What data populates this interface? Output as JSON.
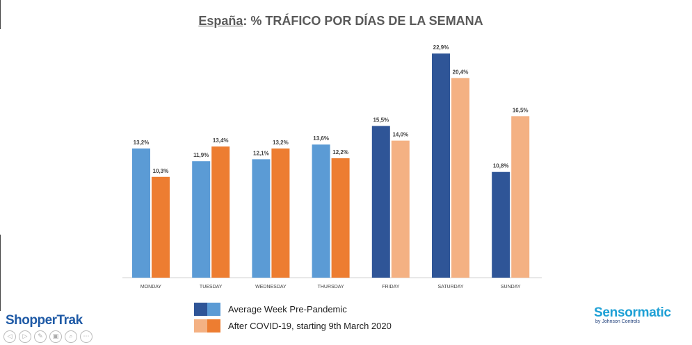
{
  "header": {
    "title_country": "España",
    "title_rest": ": % TRÁFICO POR DÍAS DE LA SEMANA"
  },
  "chart_data": {
    "type": "bar",
    "title": "España: % TRÁFICO POR DÍAS DE LA SEMANA",
    "xlabel": "",
    "ylabel": "",
    "ylim": [
      0,
      24
    ],
    "grid": false,
    "legend_position": "bottom",
    "categories": [
      "MONDAY",
      "TUESDAY",
      "WEDNESDAY",
      "THURSDAY",
      "FRIDAY",
      "SATURDAY",
      "SUNDAY"
    ],
    "series": [
      {
        "name": "Average Week Pre-Pandemic",
        "values": [
          13.2,
          11.9,
          12.1,
          13.6,
          15.5,
          22.9,
          10.8
        ],
        "labels": [
          "13,2%",
          "11,9%",
          "12,1%",
          "13,6%",
          "15,5%",
          "22,9%",
          "10,8%"
        ],
        "colors": [
          "#5b9bd5",
          "#5b9bd5",
          "#5b9bd5",
          "#5b9bd5",
          "#2f5597",
          "#2f5597",
          "#2f5597"
        ]
      },
      {
        "name": "After COVID-19, starting 9th March 2020",
        "values": [
          10.3,
          13.4,
          13.2,
          12.2,
          14.0,
          20.4,
          16.5
        ],
        "labels": [
          "10,3%",
          "13,4%",
          "13,2%",
          "12,2%",
          "14,0%",
          "20,4%",
          "16,5%"
        ],
        "colors": [
          "#ed7d31",
          "#ed7d31",
          "#ed7d31",
          "#ed7d31",
          "#f4b183",
          "#f4b183",
          "#f4b183"
        ]
      }
    ]
  },
  "legend": {
    "items": [
      {
        "label": "Average Week Pre-Pandemic",
        "colors": [
          "#2f5597",
          "#5b9bd5"
        ]
      },
      {
        "label": "After COVID-19, starting 9th March 2020",
        "colors": [
          "#f4b183",
          "#ed7d31"
        ]
      }
    ]
  },
  "branding": {
    "left_logo": "ShopperTrak",
    "right_logo": "Sensormatic",
    "right_logo_sub": "by Johnson Controls"
  },
  "controls": {
    "icons": [
      "prev-icon",
      "next-icon",
      "pen-icon",
      "slides-icon",
      "zoom-icon",
      "more-icon"
    ],
    "glyphs": [
      "◁",
      "▷",
      "✎",
      "▣",
      "⌕",
      "⋯"
    ]
  }
}
